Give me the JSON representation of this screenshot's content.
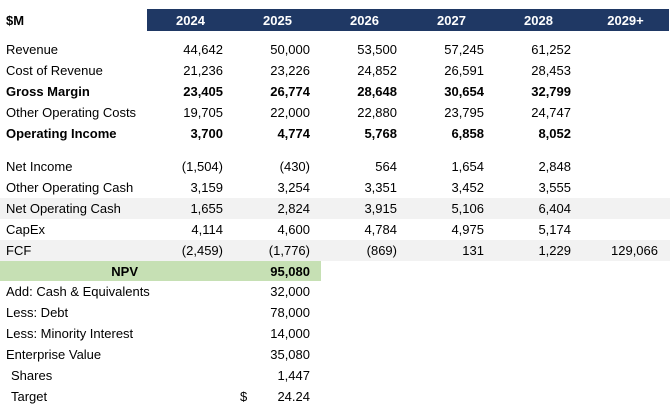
{
  "unit_label": "$M",
  "columns": [
    "2024",
    "2025",
    "2026",
    "2027",
    "2028",
    "2029+"
  ],
  "colors": {
    "header_bg": "#1F3864",
    "header_text": "#FFFFFF",
    "stripe_bg": "#F2F2F2",
    "npv_bg": "#C6E0B4",
    "text": "#000000"
  },
  "sections": {
    "pnl_rows": [
      {
        "label": "Revenue",
        "values": [
          "44,642",
          "50,000",
          "53,500",
          "57,245",
          "61,252",
          ""
        ]
      },
      {
        "label": "Cost of Revenue",
        "values": [
          "21,236",
          "23,226",
          "24,852",
          "26,591",
          "28,453",
          ""
        ]
      },
      {
        "label": "Gross Margin",
        "values": [
          "23,405",
          "26,774",
          "28,648",
          "30,654",
          "32,799",
          ""
        ]
      },
      {
        "label": "Other Operating Costs",
        "values": [
          "19,705",
          "22,000",
          "22,880",
          "23,795",
          "24,747",
          ""
        ]
      },
      {
        "label": "Operating Income",
        "values": [
          "3,700",
          "4,774",
          "5,768",
          "6,858",
          "8,052",
          ""
        ]
      }
    ],
    "cash_rows": [
      {
        "label": "Net Income",
        "values": [
          "(1,504)",
          "(430)",
          "564",
          "1,654",
          "2,848",
          ""
        ]
      },
      {
        "label": "Other Operating Cash",
        "values": [
          "3,159",
          "3,254",
          "3,351",
          "3,452",
          "3,555",
          ""
        ]
      },
      {
        "label": "Net Operating Cash",
        "values": [
          "1,655",
          "2,824",
          "3,915",
          "5,106",
          "6,404",
          ""
        ]
      },
      {
        "label": "CapEx",
        "values": [
          "4,114",
          "4,600",
          "4,784",
          "4,975",
          "5,174",
          ""
        ]
      },
      {
        "label": "FCF",
        "values": [
          "(2,459)",
          "(1,776)",
          "(869)",
          "131",
          "1,229",
          "129,066"
        ]
      }
    ],
    "npv": {
      "label": "NPV",
      "value": "95,080"
    },
    "valuation": [
      {
        "label": "Add: Cash & Equivalents",
        "prefix": "",
        "value": "32,000"
      },
      {
        "label": "Less: Debt",
        "prefix": "",
        "value": "78,000"
      },
      {
        "label": "Less: Minority Interest",
        "prefix": "",
        "value": "14,000"
      },
      {
        "label": "Enterprise Value",
        "prefix": "",
        "value": "35,080"
      },
      {
        "label": "Shares",
        "prefix": "",
        "value": "1,447"
      },
      {
        "label": "Target",
        "prefix": "$",
        "value": "24.24"
      }
    ]
  }
}
